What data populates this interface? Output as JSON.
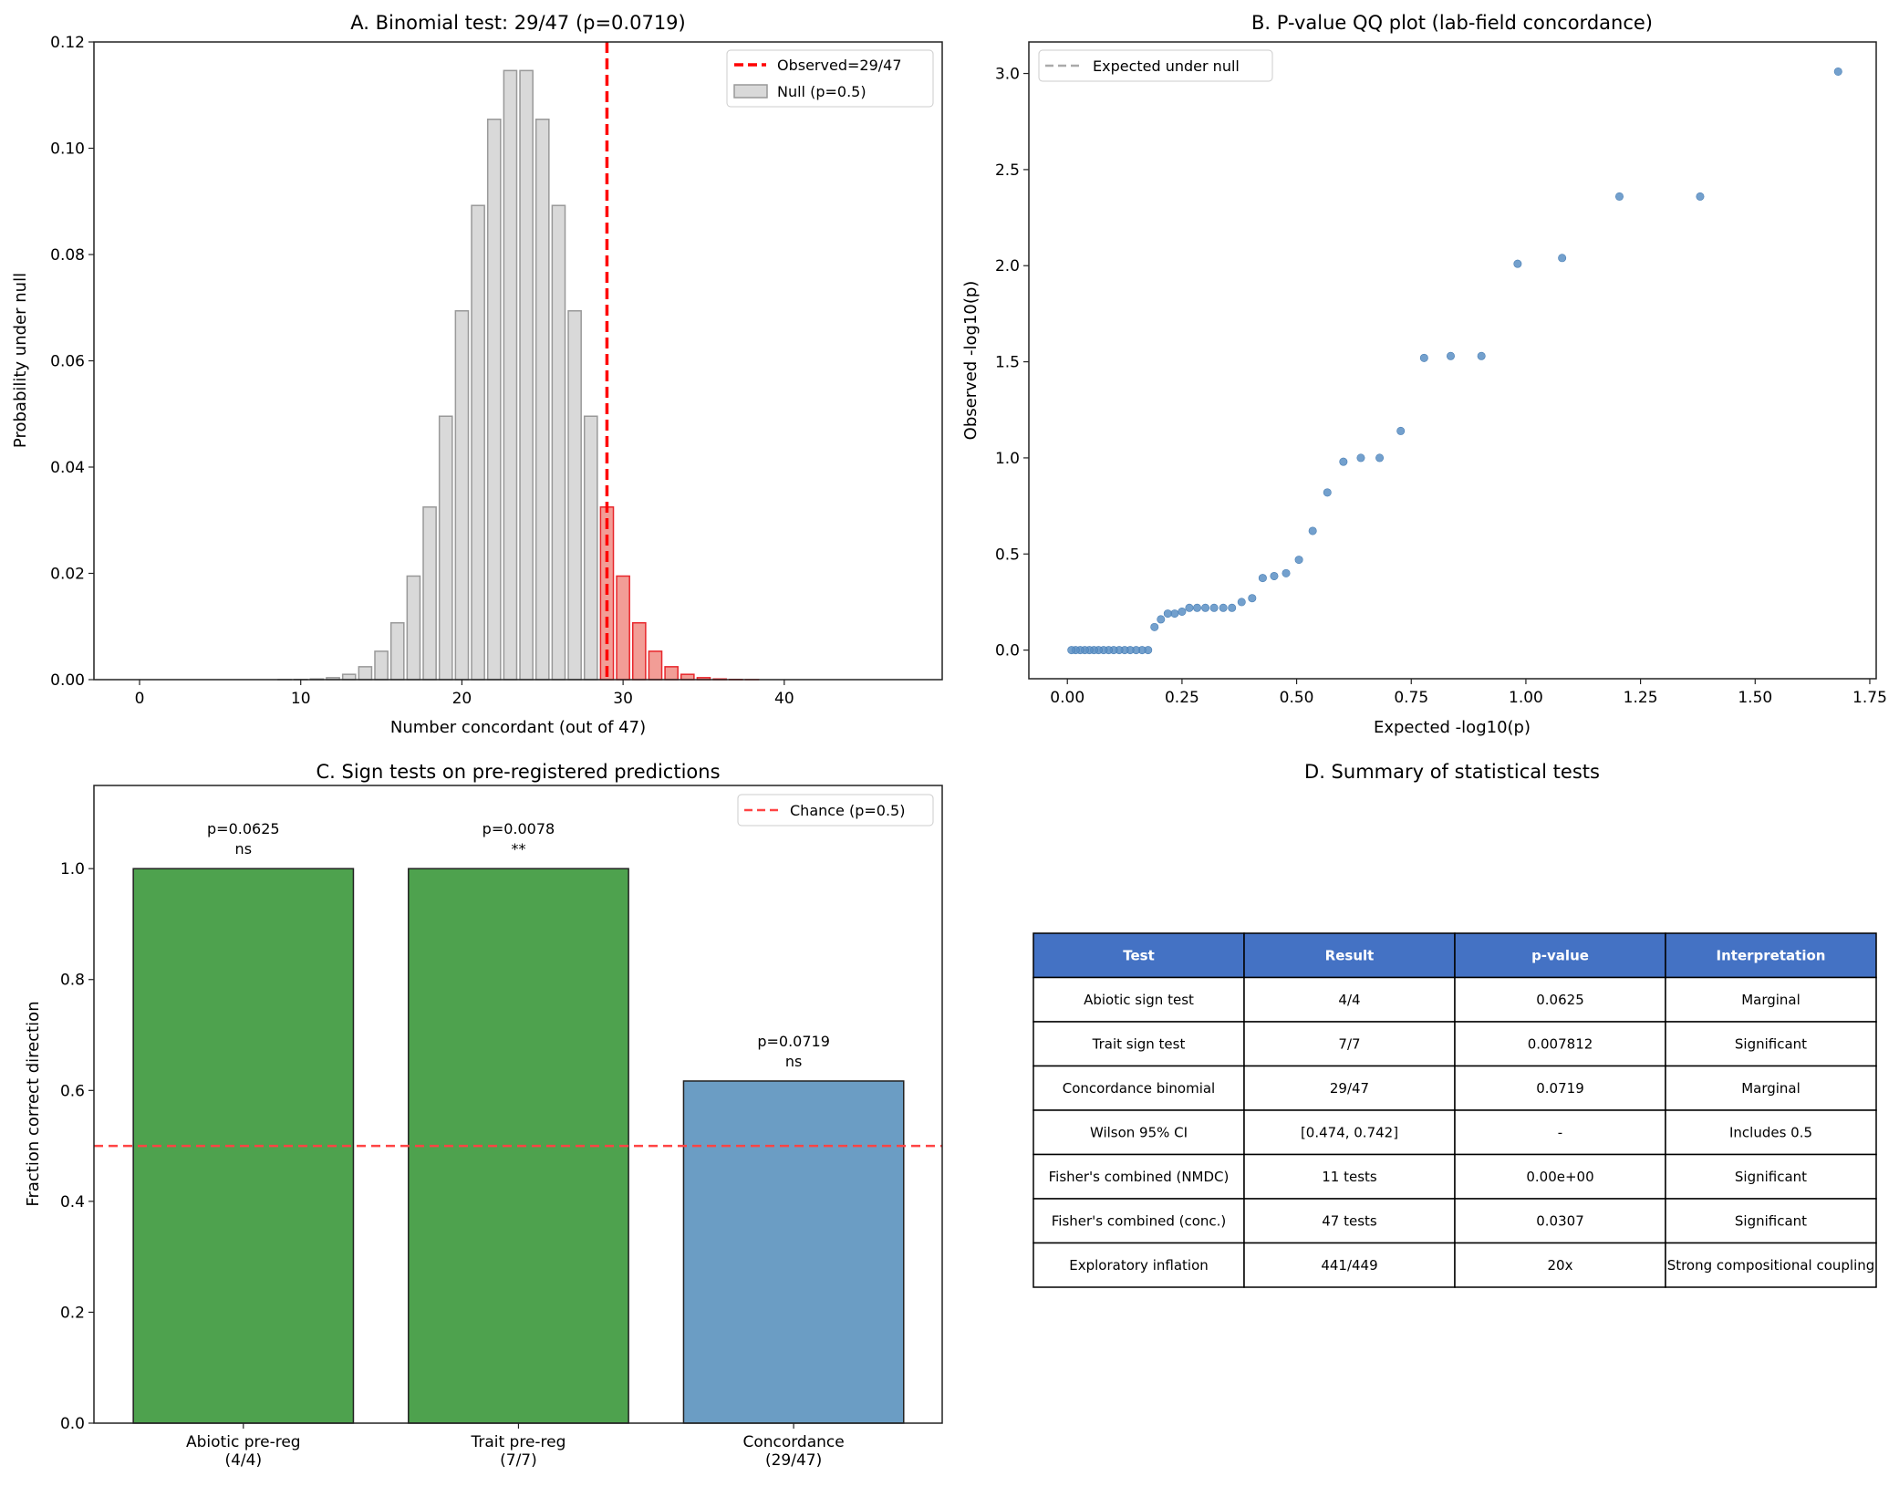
{
  "chart_data": [
    {
      "panel": "A",
      "type": "bar",
      "title": "A. Binomial test: 29/47 (p=0.0719)",
      "xlabel": "Number concordant (out of 47)",
      "ylabel": "Probability under null",
      "xlim": [
        -2.83,
        49.8
      ],
      "ylim": [
        0,
        0.12
      ],
      "xticks": [
        0,
        10,
        20,
        30,
        40
      ],
      "xtick_labels": [
        "0",
        "10",
        "20",
        "30",
        "40"
      ],
      "yticks": [
        0,
        0.02,
        0.04,
        0.06,
        0.08,
        0.1,
        0.12
      ],
      "ytick_labels": [
        "0.00",
        "0.02",
        "0.04",
        "0.06",
        "0.08",
        "0.10",
        "0.12"
      ],
      "x": [
        0,
        1,
        2,
        3,
        4,
        5,
        6,
        7,
        8,
        9,
        10,
        11,
        12,
        13,
        14,
        15,
        16,
        17,
        18,
        19,
        20,
        21,
        22,
        23,
        24,
        25,
        26,
        27,
        28,
        29,
        30,
        31,
        32,
        33,
        34,
        35,
        36,
        37,
        38,
        39,
        40,
        41,
        42,
        43,
        44,
        45,
        46,
        47
      ],
      "values": [
        0,
        0,
        0,
        0,
        0,
        0,
        0,
        0,
        0,
        9.7e-06,
        3.68e-05,
        0.000124,
        0.000372,
        0.001,
        0.002429,
        0.005344,
        0.01069,
        0.01949,
        0.03248,
        0.04957,
        0.0694,
        0.08923,
        0.10545,
        0.11462,
        0.11462,
        0.10545,
        0.08923,
        0.0694,
        0.04957,
        0.03248,
        0.01949,
        0.01069,
        0.005344,
        0.002429,
        0.001,
        0.000372,
        0.000124,
        3.68e-05,
        9.7e-06,
        0,
        0,
        0,
        0,
        0,
        0,
        0,
        0,
        0
      ],
      "highlight_from": 29,
      "observed": 29,
      "legend": {
        "placement": "upper right",
        "entries": [
          "Observed=29/47",
          "Null (p=0.5)"
        ]
      },
      "colors": {
        "null_fill": "#d9d9d9",
        "null_edge": "#999999",
        "tail_fill": "#f29d96",
        "tail_edge": "#e8262b",
        "observed_line": "#ff0000"
      }
    },
    {
      "panel": "B",
      "type": "scatter",
      "title": "B. P-value QQ plot (lab-field concordance)",
      "xlabel": "Expected -log10(p)",
      "ylabel": "Observed -log10(p)",
      "xlim": [
        -0.084,
        1.764
      ],
      "ylim": [
        -0.149,
        3.164
      ],
      "xticks": [
        0,
        0.25,
        0.5,
        0.75,
        1.0,
        1.25,
        1.5,
        1.75
      ],
      "xtick_labels": [
        "0.00",
        "0.25",
        "0.50",
        "0.75",
        "1.00",
        "1.25",
        "1.50",
        "1.75"
      ],
      "yticks": [
        0,
        0.5,
        1.0,
        1.5,
        2.0,
        2.5,
        3.0
      ],
      "ytick_labels": [
        "0.0",
        "0.5",
        "1.0",
        "1.5",
        "2.0",
        "2.5",
        "3.0"
      ],
      "x": [
        1.681,
        1.38,
        1.204,
        1.079,
        0.982,
        0.903,
        0.836,
        0.778,
        0.727,
        0.681,
        0.64,
        0.602,
        0.567,
        0.535,
        0.505,
        0.477,
        0.451,
        0.426,
        0.403,
        0.38,
        0.359,
        0.34,
        0.32,
        0.301,
        0.283,
        0.266,
        0.25,
        0.234,
        0.219,
        0.204,
        0.19,
        0.176,
        0.163,
        0.15,
        0.137,
        0.125,
        0.113,
        0.101,
        0.09,
        0.079,
        0.068,
        0.058,
        0.048,
        0.038,
        0.028,
        0.018,
        0.009
      ],
      "y": [
        3.01,
        2.36,
        2.36,
        2.04,
        2.01,
        1.53,
        1.53,
        1.52,
        1.14,
        1.0,
        1.0,
        0.98,
        0.82,
        0.62,
        0.47,
        0.4,
        0.385,
        0.375,
        0.27,
        0.25,
        0.22,
        0.22,
        0.22,
        0.22,
        0.22,
        0.22,
        0.2,
        0.19,
        0.19,
        0.16,
        0.12,
        0,
        0,
        0,
        0,
        0,
        0,
        0,
        0,
        0,
        0,
        0,
        0,
        0,
        0,
        0,
        0
      ],
      "legend": {
        "placement": "upper left",
        "entries": [
          "Expected under null"
        ]
      },
      "colors": {
        "points": "#5b8fc4",
        "null_line": "#aaaaaa"
      }
    },
    {
      "panel": "C",
      "type": "bar",
      "title": "C. Sign tests on pre-registered predictions",
      "xlabel": "",
      "ylabel": "Fraction correct direction",
      "xlim": [
        -0.543,
        2.54
      ],
      "ylim": [
        0,
        1.15
      ],
      "yticks": [
        0,
        0.2,
        0.4,
        0.6,
        0.8,
        1.0
      ],
      "ytick_labels": [
        "0.0",
        "0.2",
        "0.4",
        "0.6",
        "0.8",
        "1.0"
      ],
      "categories": [
        "Abiotic pre-reg\n(4/4)",
        "Trait pre-reg\n(7/7)",
        "Concordance\n(29/47)"
      ],
      "category_lines": [
        [
          "Abiotic pre-reg",
          "(4/4)"
        ],
        [
          "Trait pre-reg",
          "(7/7)"
        ],
        [
          "Concordance",
          "(29/47)"
        ]
      ],
      "values": [
        1.0,
        1.0,
        0.617
      ],
      "annotations": [
        [
          "p=0.0625",
          "ns"
        ],
        [
          "p=0.0078",
          "**"
        ],
        [
          "p=0.0719",
          "ns"
        ]
      ],
      "bar_colors": [
        "#4ea24e",
        "#4ea24e",
        "#6b9dc4"
      ],
      "reference_line": 0.5,
      "legend": {
        "placement": "upper right",
        "entries": [
          "Chance (p=0.5)"
        ]
      },
      "colors": {
        "reference_line": "#ff4444"
      }
    },
    {
      "panel": "D",
      "type": "table",
      "title": "D. Summary of statistical tests",
      "columns": [
        "Test",
        "Result",
        "p-value",
        "Interpretation"
      ],
      "rows": [
        [
          "Abiotic sign test",
          "4/4",
          "0.0625",
          "Marginal"
        ],
        [
          "Trait sign test",
          "7/7",
          "0.007812",
          "Significant"
        ],
        [
          "Concordance binomial",
          "29/47",
          "0.0719",
          "Marginal"
        ],
        [
          "Wilson 95% CI",
          "[0.474, 0.742]",
          "-",
          "Includes 0.5"
        ],
        [
          "Fisher's combined (NMDC)",
          "11 tests",
          "0.00e+00",
          "Significant"
        ],
        [
          "Fisher's combined (conc.)",
          "47 tests",
          "0.0307",
          "Significant"
        ],
        [
          "Exploratory inflation",
          "441/449",
          "20x",
          "Strong compositional coupling"
        ]
      ],
      "colors": {
        "header": "#4472c4"
      }
    }
  ]
}
